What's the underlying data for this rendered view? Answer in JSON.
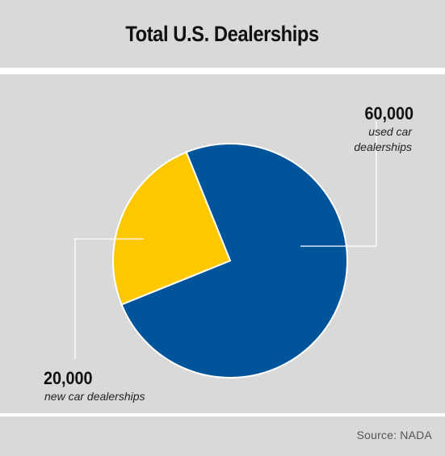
{
  "header": {
    "title": "Total U.S. Dealerships"
  },
  "footer": {
    "source": "Source: NADA"
  },
  "colors": {
    "used": "#00549a",
    "new": "#fdc800",
    "panel": "#d9d9d9"
  },
  "chart_data": {
    "type": "pie",
    "title": "Total U.S. Dealerships",
    "slices": [
      {
        "value": 60000,
        "value_label": "60,000",
        "label_lines": [
          "used car",
          "dealerships"
        ],
        "color": "#00549a"
      },
      {
        "value": 20000,
        "value_label": "20,000",
        "label_lines": [
          "new car dealerships"
        ],
        "color": "#fdc800"
      }
    ]
  }
}
